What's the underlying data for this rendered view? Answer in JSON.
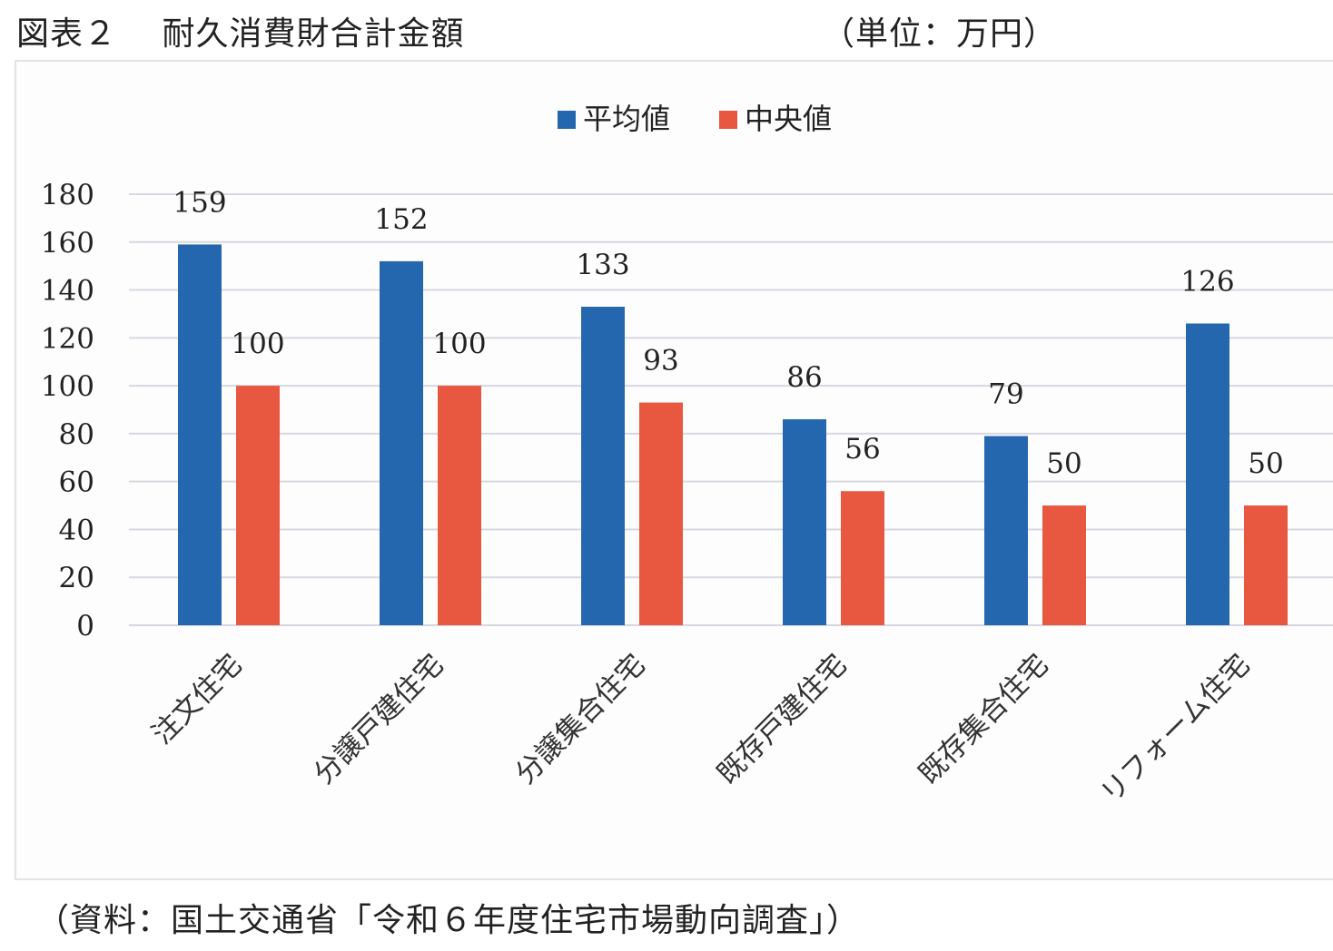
{
  "header": {
    "title": "図表２　 耐久消費財合計金額",
    "unit": "（単位：万円）"
  },
  "source": "（資料：国土交通省「令和６年度住宅市場動向調査」）",
  "colors": {
    "mean": "#2467ae",
    "median": "#e8573f",
    "grid": "#d7d7df",
    "text": "#222222"
  },
  "chart_data": {
    "type": "bar",
    "title": "",
    "xlabel": "",
    "ylabel": "",
    "categories": [
      "注文住宅",
      "分譲戸建住宅",
      "分譲集合住宅",
      "既存戸建住宅",
      "既存集合住宅",
      "リフォーム住宅"
    ],
    "series": [
      {
        "name": "平均値",
        "values": [
          159,
          152,
          133,
          86,
          79,
          126
        ]
      },
      {
        "name": "中央値",
        "values": [
          100,
          100,
          93,
          56,
          50,
          50
        ]
      }
    ],
    "ylim": [
      0,
      180
    ],
    "yticks": [
      0,
      20,
      40,
      60,
      80,
      100,
      120,
      140,
      160,
      180
    ],
    "grid": true,
    "legend_position": "top-center",
    "data_labels": true
  }
}
